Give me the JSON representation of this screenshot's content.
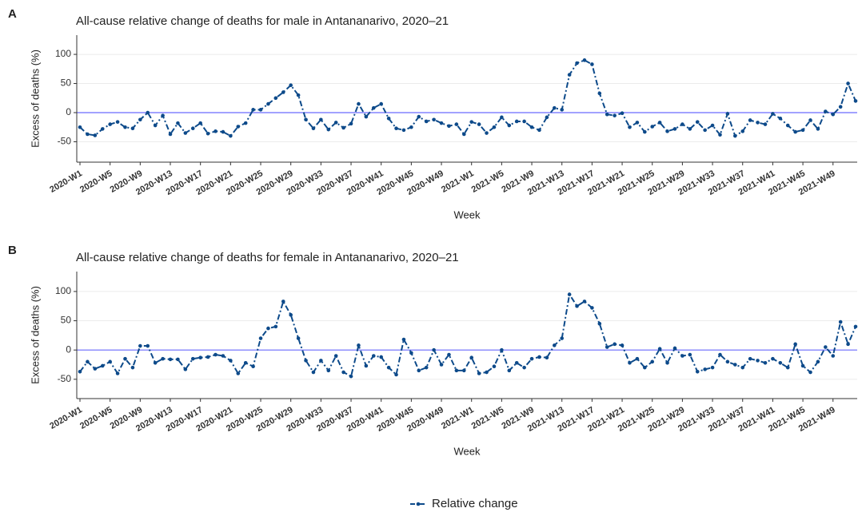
{
  "chart_data": [
    {
      "type": "line",
      "panel": "A",
      "title": "All-cause relative change of deaths for male in Antananarivo, 2020–21",
      "x_label": "Week",
      "y_label": "Excess of deaths (%)",
      "categories": [
        "2020-W1",
        null,
        null,
        null,
        "2020-W5",
        null,
        null,
        null,
        "2020-W9",
        null,
        null,
        null,
        "2020-W13",
        null,
        null,
        null,
        "2020-W17",
        null,
        null,
        null,
        "2020-W21",
        null,
        null,
        null,
        "2020-W25",
        null,
        null,
        null,
        "2020-W29",
        null,
        null,
        null,
        "2020-W33",
        null,
        null,
        null,
        "2020-W37",
        null,
        null,
        null,
        "2020-W41",
        null,
        null,
        null,
        "2020-W45",
        null,
        null,
        null,
        "2020-W49",
        null,
        null,
        null,
        "2021-W1",
        null,
        null,
        null,
        "2021-W5",
        null,
        null,
        null,
        "2021-W9",
        null,
        null,
        null,
        "2021-W13",
        null,
        null,
        null,
        "2021-W17",
        null,
        null,
        null,
        "2021-W21",
        null,
        null,
        null,
        "2021-W25",
        null,
        null,
        null,
        "2021-W29",
        null,
        null,
        null,
        "2021-W33",
        null,
        null,
        null,
        "2021-W37",
        null,
        null,
        null,
        "2021-W41",
        null,
        null,
        null,
        "2021-W45",
        null,
        null,
        null,
        "2021-W49",
        null,
        null,
        null
      ],
      "series": [
        {
          "name": "Relative change",
          "color": "#0d4a8a",
          "values": [
            -25,
            -37,
            -39,
            -28,
            -20,
            -16,
            -25,
            -27,
            -12,
            0,
            -22,
            -5,
            -37,
            -18,
            -35,
            -27,
            -18,
            -36,
            -32,
            -33,
            -40,
            -24,
            -18,
            5,
            5,
            15,
            25,
            35,
            47,
            30,
            -12,
            -27,
            -12,
            -29,
            -17,
            -26,
            -19,
            15,
            -7,
            8,
            15,
            -10,
            -27,
            -30,
            -25,
            -7,
            -15,
            -12,
            -18,
            -23,
            -20,
            -37,
            -16,
            -20,
            -35,
            -25,
            -8,
            -22,
            -15,
            -15,
            -25,
            -30,
            -8,
            8,
            5,
            65,
            85,
            90,
            83,
            33,
            -3,
            -5,
            -1,
            -25,
            -17,
            -33,
            -24,
            -17,
            -32,
            -28,
            -20,
            -28,
            -16,
            -30,
            -22,
            -38,
            -2,
            -40,
            -32,
            -13,
            -17,
            -20,
            -2,
            -10,
            -22,
            -33,
            -30,
            -13,
            -28,
            2,
            -3,
            10,
            50,
            20
          ]
        }
      ],
      "ylim": [
        -85,
        133
      ],
      "yticks": [
        -50,
        0,
        50,
        100
      ],
      "grid": true
    },
    {
      "type": "line",
      "panel": "B",
      "title": "All-cause relative change of deaths for female in Antananarivo, 2020–21",
      "x_label": "Week",
      "y_label": "Excess of deaths (%)",
      "categories": [
        "2020-W1",
        null,
        null,
        null,
        "2020-W5",
        null,
        null,
        null,
        "2020-W9",
        null,
        null,
        null,
        "2020-W13",
        null,
        null,
        null,
        "2020-W17",
        null,
        null,
        null,
        "2020-W21",
        null,
        null,
        null,
        "2020-W25",
        null,
        null,
        null,
        "2020-W29",
        null,
        null,
        null,
        "2020-W33",
        null,
        null,
        null,
        "2020-W37",
        null,
        null,
        null,
        "2020-W41",
        null,
        null,
        null,
        "2020-W45",
        null,
        null,
        null,
        "2020-W49",
        null,
        null,
        null,
        "2021-W1",
        null,
        null,
        null,
        "2021-W5",
        null,
        null,
        null,
        "2021-W9",
        null,
        null,
        null,
        "2021-W13",
        null,
        null,
        null,
        "2021-W17",
        null,
        null,
        null,
        "2021-W21",
        null,
        null,
        null,
        "2021-W25",
        null,
        null,
        null,
        "2021-W29",
        null,
        null,
        null,
        "2021-W33",
        null,
        null,
        null,
        "2021-W37",
        null,
        null,
        null,
        "2021-W41",
        null,
        null,
        null,
        "2021-W45",
        null,
        null,
        null,
        "2021-W49",
        null,
        null,
        null
      ],
      "series": [
        {
          "color": "#0d4a8a",
          "values": [
            -37,
            -20,
            -32,
            -27,
            -20,
            -40,
            -15,
            -30,
            7,
            7,
            -22,
            -15,
            -16,
            -16,
            -33,
            -15,
            -13,
            -12,
            -8,
            -10,
            -18,
            -40,
            -22,
            -28,
            20,
            37,
            40,
            83,
            60,
            20,
            -18,
            -38,
            -18,
            -35,
            -10,
            -38,
            -45,
            8,
            -27,
            -10,
            -12,
            -30,
            -42,
            18,
            -5,
            -35,
            -30,
            0,
            -25,
            -8,
            -35,
            -35,
            -13,
            -40,
            -38,
            -28,
            0,
            -35,
            -22,
            -30,
            -15,
            -12,
            -13,
            8,
            20,
            95,
            75,
            83,
            72,
            45,
            5,
            10,
            8,
            -22,
            -15,
            -30,
            -20,
            2,
            -22,
            3,
            -10,
            -8,
            -37,
            -33,
            -30,
            -8,
            -20,
            -25,
            -30,
            -15,
            -18,
            -22,
            -15,
            -22,
            -30,
            10,
            -27,
            -38,
            -20,
            5,
            -10,
            48,
            10,
            40
          ]
        }
      ],
      "ylim": [
        -83,
        134
      ],
      "yticks": [
        -50,
        0,
        50,
        100
      ],
      "grid": true
    }
  ]
}
